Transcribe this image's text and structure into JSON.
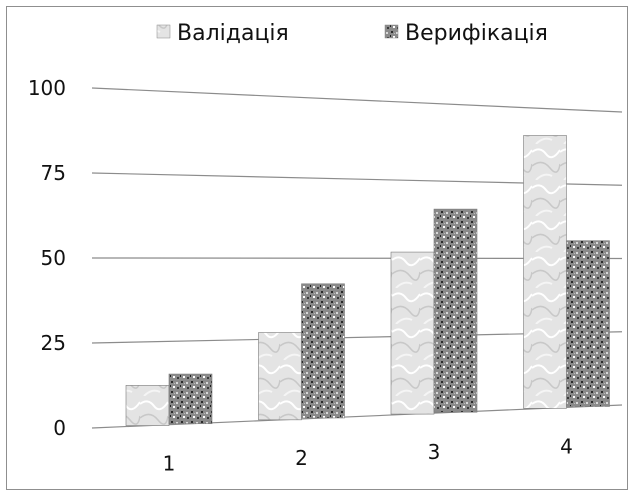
{
  "chart_data": {
    "type": "bar",
    "title": "",
    "xlabel": "",
    "ylabel": "",
    "categories": [
      "1",
      "2",
      "3",
      "4"
    ],
    "series": [
      {
        "name": "Валідація",
        "values": [
          12,
          27,
          52,
          91
        ],
        "color": "#d9d9d9",
        "pattern": "marble"
      },
      {
        "name": "Верифікація",
        "values": [
          15,
          42,
          66,
          56
        ],
        "color": "#6e6e6e",
        "pattern": "granite"
      }
    ],
    "ylim": [
      0,
      100
    ],
    "yticks": [
      "0",
      "25",
      "50",
      "75",
      "100"
    ],
    "grid": true,
    "legend": "top",
    "perspective": "3d"
  }
}
